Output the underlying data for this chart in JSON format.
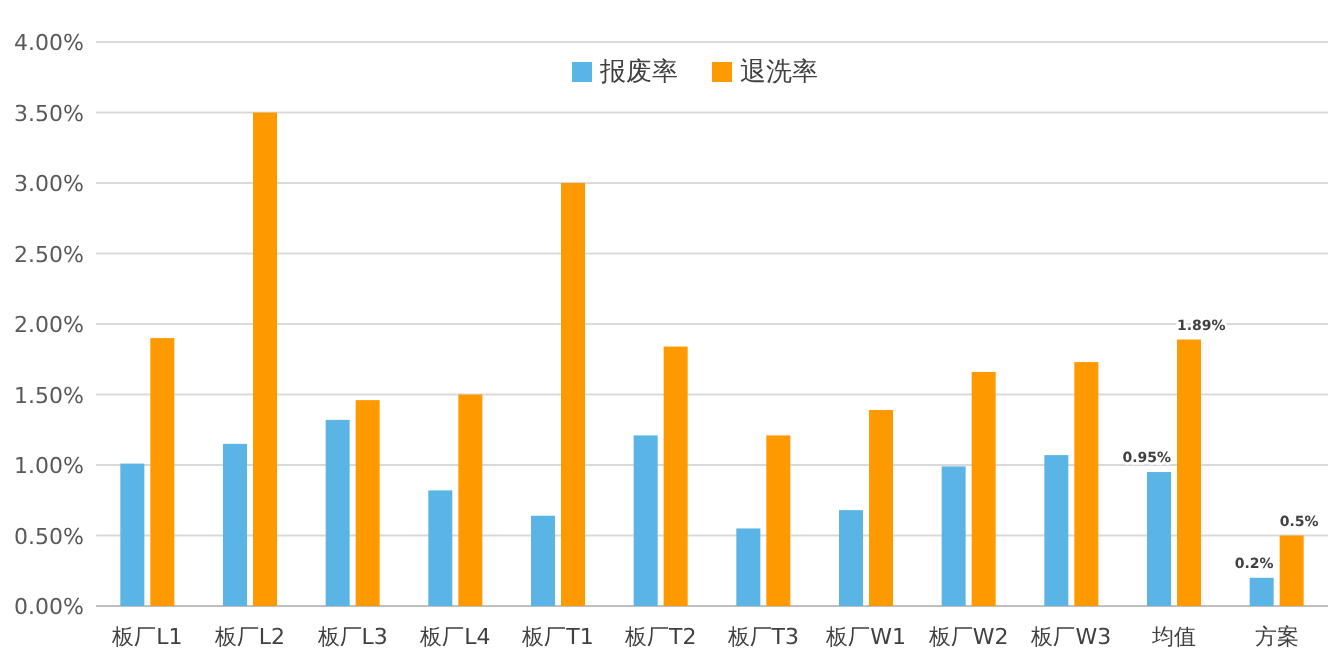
{
  "chart_data": {
    "type": "bar",
    "categories": [
      "板厂L1",
      "板厂L2",
      "板厂L3",
      "板厂L4",
      "板厂T1",
      "板厂T2",
      "板厂T3",
      "板厂W1",
      "板厂W2",
      "板厂W3",
      "均值",
      "方案"
    ],
    "series": [
      {
        "name": "报废率",
        "color": "#5ab4e5",
        "values": [
          1.01,
          1.15,
          1.32,
          0.82,
          0.64,
          1.21,
          0.55,
          0.68,
          0.99,
          1.07,
          0.95,
          0.2
        ],
        "value_labels": [
          null,
          null,
          null,
          null,
          null,
          null,
          null,
          null,
          null,
          null,
          "0.95%",
          "0.2%"
        ]
      },
      {
        "name": "退洗率",
        "color": "#ff9900",
        "values": [
          1.9,
          3.5,
          1.46,
          1.5,
          3.0,
          1.84,
          1.21,
          1.39,
          1.66,
          1.73,
          1.89,
          0.5
        ],
        "value_labels": [
          null,
          null,
          null,
          null,
          null,
          null,
          null,
          null,
          null,
          null,
          "1.89%",
          "0.5%"
        ]
      }
    ],
    "ylim": [
      0,
      4
    ],
    "yticks": [
      {
        "value": 0,
        "label": "0.00%"
      },
      {
        "value": 0.5,
        "label": "0.50%"
      },
      {
        "value": 1,
        "label": "1.00%"
      },
      {
        "value": 1.5,
        "label": "1.50%"
      },
      {
        "value": 2,
        "label": "2.00%"
      },
      {
        "value": 2.5,
        "label": "2.50%"
      },
      {
        "value": 3,
        "label": "3.00%"
      },
      {
        "value": 3.5,
        "label": "3.50%"
      },
      {
        "value": 4,
        "label": "4.00%"
      }
    ],
    "grid": "y",
    "legend": "top"
  }
}
